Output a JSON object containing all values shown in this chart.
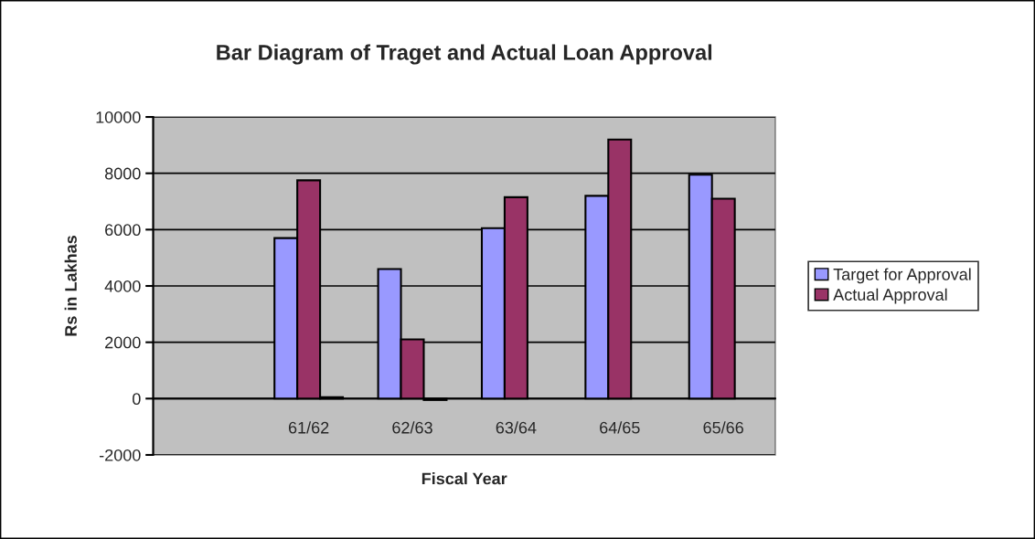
{
  "chart_data": {
    "type": "bar",
    "title": "Bar Diagram of Traget and Actual Loan Approval",
    "xlabel": "Fiscal Year",
    "ylabel": "Rs in Lakhas",
    "categories": [
      null,
      "61/62",
      "62/63",
      "63/64",
      "64/65",
      "65/66"
    ],
    "series": [
      {
        "name": "Target for Approval",
        "color": "#9999ff",
        "values": [
          null,
          5700,
          4600,
          6050,
          7200,
          7950
        ]
      },
      {
        "name": "Actual Approval",
        "color": "#993366",
        "values": [
          null,
          7750,
          2100,
          7150,
          9200,
          7100
        ]
      },
      {
        "color": "#ffffcc",
        "values": [
          null,
          50,
          -50,
          null,
          null,
          null
        ]
      }
    ],
    "ylim": [
      -2000,
      10000
    ],
    "yticks": [
      -2000,
      0,
      2000,
      4000,
      6000,
      8000,
      10000
    ],
    "grid": "y",
    "legend": "right"
  }
}
